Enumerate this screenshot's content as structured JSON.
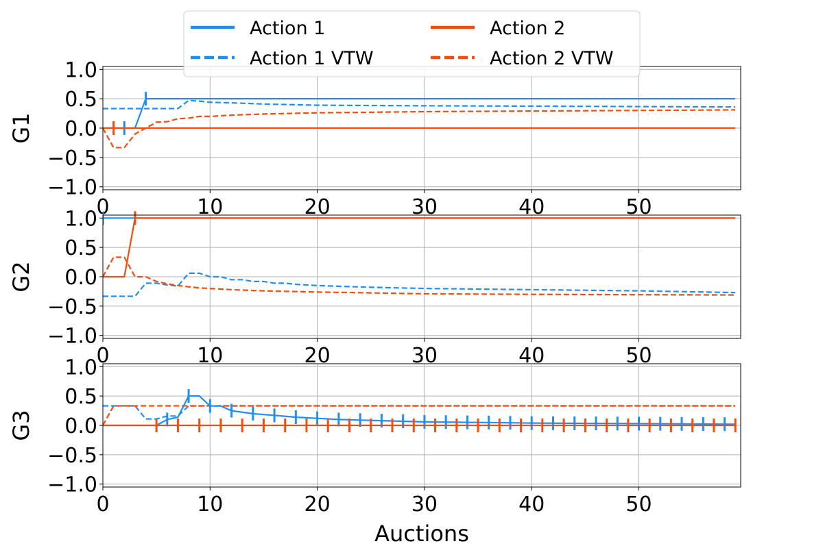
{
  "colors": {
    "action1": "#1f8ff5",
    "action2": "#fa4b0a",
    "grid": "#b0b0b0",
    "axis": "#000000"
  },
  "legend": {
    "placement": "top-center",
    "entries": [
      {
        "label": "Action 1",
        "series": "action1",
        "style": "solid"
      },
      {
        "label": "Action 2",
        "series": "action2",
        "style": "solid"
      },
      {
        "label": "Action 1 VTW",
        "series": "action1",
        "style": "dashed"
      },
      {
        "label": "Action 2 VTW",
        "series": "action2",
        "style": "dashed"
      }
    ]
  },
  "chart_data": {
    "type": "line",
    "grid": true,
    "xlabel": "Auctions",
    "xlim": [
      0,
      59.5
    ],
    "ylim": [
      -1.05,
      1.05
    ],
    "xticks": [
      0,
      10,
      20,
      30,
      40,
      50
    ],
    "yticks": [
      -1.0,
      -0.5,
      0.0,
      0.5,
      1.0
    ],
    "panels": [
      {
        "ylabel": "G1",
        "series": [
          {
            "name": "Action 1",
            "color": "action1",
            "style": "solid",
            "x": [
              0,
              3,
              4,
              59
            ],
            "y": [
              0,
              0,
              0.5,
              0.5
            ],
            "ticks": [
              2,
              4
            ]
          },
          {
            "name": "Action 1 VTW",
            "color": "action1",
            "style": "dashed",
            "x": [
              0,
              7,
              8,
              9,
              10,
              12,
              15,
              20,
              30,
              59
            ],
            "y": [
              0.333,
              0.333,
              0.47,
              0.46,
              0.44,
              0.43,
              0.41,
              0.39,
              0.38,
              0.36
            ]
          },
          {
            "name": "Action 2",
            "color": "action2",
            "style": "solid",
            "x": [
              0,
              59
            ],
            "y": [
              0,
              0
            ],
            "ticks": [
              1
            ]
          },
          {
            "name": "Action 2 VTW",
            "color": "action2",
            "style": "dashed",
            "x": [
              0,
              1,
              2,
              3,
              4,
              5,
              6,
              7,
              8,
              9,
              10,
              12,
              15,
              20,
              30,
              59
            ],
            "y": [
              0,
              -0.333,
              -0.333,
              -0.1,
              0,
              0.1,
              0.11,
              0.16,
              0.17,
              0.2,
              0.2,
              0.22,
              0.24,
              0.26,
              0.28,
              0.31
            ]
          }
        ]
      },
      {
        "ylabel": "G2",
        "series": [
          {
            "name": "Action 1",
            "color": "action1",
            "style": "solid",
            "x": [
              0,
              59
            ],
            "y": [
              1,
              1
            ],
            "ticks": [
              0
            ]
          },
          {
            "name": "Action 1 VTW",
            "color": "action1",
            "style": "dashed",
            "x": [
              0,
              3,
              4,
              5,
              6,
              7,
              8,
              9,
              10,
              11,
              12,
              13,
              14,
              15,
              16,
              17,
              18,
              20,
              25,
              30,
              40,
              50,
              59
            ],
            "y": [
              -0.333,
              -0.333,
              -0.11,
              -0.11,
              -0.14,
              -0.16,
              0.06,
              0.06,
              0.0,
              0.0,
              -0.05,
              -0.05,
              -0.08,
              -0.08,
              -0.11,
              -0.11,
              -0.13,
              -0.15,
              -0.18,
              -0.2,
              -0.22,
              -0.24,
              -0.27
            ]
          },
          {
            "name": "Action 2",
            "color": "action2",
            "style": "solid",
            "x": [
              0,
              2,
              3,
              59
            ],
            "y": [
              0,
              0,
              1,
              1
            ],
            "ticks": [
              3
            ]
          },
          {
            "name": "Action 2 VTW",
            "color": "action2",
            "style": "dashed",
            "x": [
              0,
              1,
              2,
              3,
              4,
              5,
              6,
              7,
              8,
              9,
              10,
              12,
              15,
              20,
              30,
              40,
              59
            ],
            "y": [
              0,
              0.333,
              0.333,
              0,
              0,
              -0.08,
              -0.12,
              -0.15,
              -0.17,
              -0.19,
              -0.2,
              -0.22,
              -0.24,
              -0.26,
              -0.29,
              -0.3,
              -0.31
            ]
          }
        ]
      },
      {
        "ylabel": "G3",
        "series": [
          {
            "name": "Action 1",
            "color": "action1",
            "style": "solid",
            "x": [
              0,
              5,
              6,
              7,
              8,
              9,
              10,
              11,
              12,
              14,
              16,
              18,
              20,
              22,
              24,
              26,
              28,
              30,
              35,
              40,
              50,
              59
            ],
            "y": [
              0,
              0,
              0.1,
              0.14,
              0.5,
              0.5,
              0.33,
              0.33,
              0.25,
              0.2,
              0.17,
              0.14,
              0.12,
              0.1,
              0.09,
              0.08,
              0.07,
              0.06,
              0.05,
              0.04,
              0.03,
              0.02
            ],
            "ticks": [
              6,
              8,
              10,
              12,
              14,
              16,
              18,
              20,
              22,
              24,
              26,
              28,
              30,
              32,
              34,
              36,
              38,
              40,
              42,
              44,
              46,
              48,
              50,
              52,
              54,
              56,
              58
            ]
          },
          {
            "name": "Action 1 VTW",
            "color": "action1",
            "style": "dashed",
            "x": [
              0,
              1,
              2,
              3,
              4,
              5,
              6,
              7,
              8,
              9,
              59
            ],
            "y": [
              0.333,
              0.333,
              0.333,
              0.333,
              0.11,
              0.11,
              0.16,
              0.16,
              0.33,
              0.333,
              0.333
            ]
          },
          {
            "name": "Action 2",
            "color": "action2",
            "style": "solid",
            "x": [
              0,
              59
            ],
            "y": [
              0,
              0
            ],
            "ticks": [
              5,
              7,
              9,
              11,
              13,
              15,
              17,
              19,
              21,
              23,
              25,
              27,
              29,
              31,
              33,
              35,
              37,
              39,
              41,
              43,
              45,
              47,
              49,
              51,
              53,
              55,
              57,
              59
            ]
          },
          {
            "name": "Action 2 VTW",
            "color": "action2",
            "style": "dashed",
            "x": [
              0,
              1,
              59
            ],
            "y": [
              0,
              0.333,
              0.333
            ]
          }
        ]
      }
    ]
  }
}
